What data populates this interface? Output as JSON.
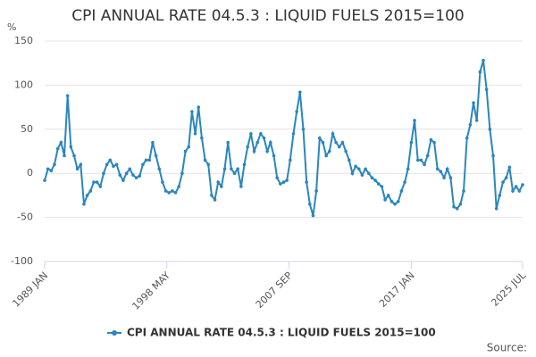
{
  "chart_data": {
    "type": "line",
    "title": "CPI ANNUAL RATE 04.5.3 : LIQUID FUELS 2015=100",
    "y_label": "%",
    "source": "Source:",
    "x": [
      1989,
      1989.25,
      1989.5,
      1989.75,
      1990,
      1990.25,
      1990.5,
      1990.75,
      1991,
      1991.25,
      1991.5,
      1991.75,
      1992,
      1992.25,
      1992.5,
      1992.75,
      1993,
      1993.25,
      1993.5,
      1993.75,
      1994,
      1994.25,
      1994.5,
      1994.75,
      1995,
      1995.25,
      1995.5,
      1995.75,
      1996,
      1996.25,
      1996.5,
      1996.75,
      1997,
      1997.25,
      1997.5,
      1997.75,
      1998,
      1998.25,
      1998.5,
      1998.75,
      1999,
      1999.25,
      1999.5,
      1999.75,
      2000,
      2000.25,
      2000.5,
      2000.75,
      2001,
      2001.25,
      2001.5,
      2001.75,
      2002,
      2002.25,
      2002.5,
      2002.75,
      2003,
      2003.25,
      2003.5,
      2003.75,
      2004,
      2004.25,
      2004.5,
      2004.75,
      2005,
      2005.25,
      2005.5,
      2005.75,
      2006,
      2006.25,
      2006.5,
      2006.75,
      2007,
      2007.25,
      2007.5,
      2007.75,
      2008,
      2008.25,
      2008.5,
      2008.75,
      2009,
      2009.25,
      2009.5,
      2009.75,
      2010,
      2010.25,
      2010.5,
      2010.75,
      2011,
      2011.25,
      2011.5,
      2011.75,
      2012,
      2012.25,
      2012.5,
      2012.75,
      2013,
      2013.25,
      2013.5,
      2013.75,
      2014,
      2014.25,
      2014.5,
      2014.75,
      2015,
      2015.25,
      2015.5,
      2015.75,
      2016,
      2016.25,
      2016.5,
      2016.75,
      2017,
      2017.25,
      2017.5,
      2017.75,
      2018,
      2018.25,
      2018.5,
      2018.75,
      2019,
      2019.25,
      2019.5,
      2019.75,
      2020,
      2020.25,
      2020.5,
      2020.75,
      2021,
      2021.25,
      2021.5,
      2021.75,
      2022,
      2022.25,
      2022.5,
      2022.75,
      2023,
      2023.25,
      2023.5,
      2023.75,
      2024,
      2024.25,
      2024.5,
      2024.75,
      2025,
      2025.25,
      2025.5
    ],
    "series": [
      {
        "name": "CPI ANNUAL RATE 04.5.3 : LIQUID FUELS 2015=100",
        "color": "#2a86bf",
        "values": [
          -8,
          5,
          3,
          10,
          28,
          35,
          20,
          88,
          30,
          20,
          5,
          10,
          -35,
          -25,
          -20,
          -10,
          -10,
          -15,
          0,
          10,
          15,
          8,
          10,
          -2,
          -8,
          0,
          5,
          -2,
          -5,
          -3,
          10,
          15,
          15,
          35,
          20,
          5,
          -10,
          -20,
          -22,
          -20,
          -22,
          -15,
          0,
          25,
          30,
          70,
          45,
          75,
          40,
          15,
          10,
          -25,
          -30,
          -10,
          -15,
          5,
          35,
          5,
          0,
          5,
          -15,
          10,
          30,
          45,
          25,
          35,
          45,
          40,
          25,
          35,
          20,
          -5,
          -12,
          -10,
          -8,
          15,
          45,
          70,
          92,
          50,
          -10,
          -35,
          -48,
          -20,
          40,
          35,
          20,
          25,
          45,
          35,
          30,
          35,
          25,
          15,
          0,
          8,
          5,
          -2,
          5,
          0,
          -5,
          -8,
          -12,
          -15,
          -30,
          -25,
          -32,
          -35,
          -32,
          -20,
          -10,
          5,
          35,
          60,
          15,
          15,
          10,
          20,
          38,
          35,
          5,
          2,
          -5,
          5,
          -5,
          -38,
          -40,
          -35,
          -20,
          40,
          55,
          80,
          60,
          115,
          128,
          95,
          50,
          20,
          -40,
          -25,
          -10,
          -5,
          7,
          -20,
          -15,
          -20,
          -13
        ]
      }
    ],
    "xlim": [
      1989,
      2025.5
    ],
    "xticks": [
      {
        "value": 1989,
        "label": "1989 JAN"
      },
      {
        "value": 1998.333,
        "label": "1998 MAY"
      },
      {
        "value": 2007.667,
        "label": "2007 SEP"
      },
      {
        "value": 2017,
        "label": "2017 JAN"
      },
      {
        "value": 2025.5,
        "label": "2025 JUL"
      }
    ],
    "ylim": [
      -100,
      150
    ],
    "yticks": [
      150,
      100,
      50,
      0,
      -50,
      -100
    ],
    "grid": true,
    "legend": "bottom"
  }
}
